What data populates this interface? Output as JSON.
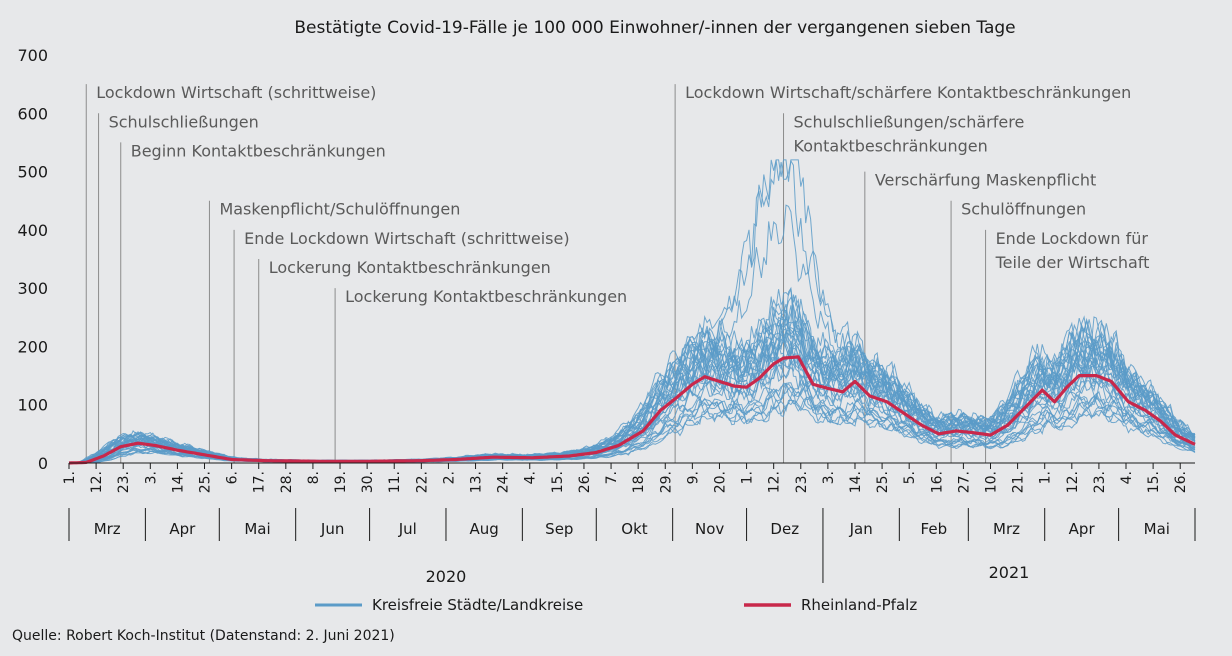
{
  "chart_data": {
    "type": "line",
    "title": "Bestätigte Covid-19-Fälle je 100 000 Einwohner/-innen der vergangenen sieben Tage",
    "ylim": [
      0,
      700
    ],
    "yticks": [
      0,
      100,
      200,
      300,
      400,
      500,
      600,
      700
    ],
    "x_domain": [
      "2020-03-01",
      "2021-06-01"
    ],
    "x_ticks": [
      {
        "date": "2020-03-01",
        "label": "1."
      },
      {
        "date": "2020-03-12",
        "label": "12."
      },
      {
        "date": "2020-03-23",
        "label": "23."
      },
      {
        "date": "2020-04-03",
        "label": "3."
      },
      {
        "date": "2020-04-14",
        "label": "14."
      },
      {
        "date": "2020-04-25",
        "label": "25."
      },
      {
        "date": "2020-05-06",
        "label": "6."
      },
      {
        "date": "2020-05-17",
        "label": "17."
      },
      {
        "date": "2020-05-28",
        "label": "28."
      },
      {
        "date": "2020-06-08",
        "label": "8."
      },
      {
        "date": "2020-06-19",
        "label": "19."
      },
      {
        "date": "2020-06-30",
        "label": "30."
      },
      {
        "date": "2020-07-11",
        "label": "11."
      },
      {
        "date": "2020-07-22",
        "label": "22."
      },
      {
        "date": "2020-08-02",
        "label": "2."
      },
      {
        "date": "2020-08-13",
        "label": "13."
      },
      {
        "date": "2020-08-24",
        "label": "24."
      },
      {
        "date": "2020-09-04",
        "label": "4."
      },
      {
        "date": "2020-09-15",
        "label": "15."
      },
      {
        "date": "2020-09-26",
        "label": "26."
      },
      {
        "date": "2020-10-07",
        "label": "7."
      },
      {
        "date": "2020-10-18",
        "label": "18."
      },
      {
        "date": "2020-10-29",
        "label": "29."
      },
      {
        "date": "2020-11-09",
        "label": "9."
      },
      {
        "date": "2020-11-20",
        "label": "20."
      },
      {
        "date": "2020-12-01",
        "label": "1."
      },
      {
        "date": "2020-12-12",
        "label": "12."
      },
      {
        "date": "2020-12-23",
        "label": "23."
      },
      {
        "date": "2021-01-03",
        "label": "3."
      },
      {
        "date": "2021-01-14",
        "label": "14."
      },
      {
        "date": "2021-01-25",
        "label": "25."
      },
      {
        "date": "2021-02-05",
        "label": "5."
      },
      {
        "date": "2021-02-16",
        "label": "16."
      },
      {
        "date": "2021-02-27",
        "label": "27."
      },
      {
        "date": "2021-03-10",
        "label": "10."
      },
      {
        "date": "2021-03-21",
        "label": "21."
      },
      {
        "date": "2021-04-01",
        "label": "1."
      },
      {
        "date": "2021-04-12",
        "label": "12."
      },
      {
        "date": "2021-04-23",
        "label": "23."
      },
      {
        "date": "2021-05-04",
        "label": "4."
      },
      {
        "date": "2021-05-15",
        "label": "15."
      },
      {
        "date": "2021-05-26",
        "label": "26."
      }
    ],
    "months": [
      {
        "label": "Mrz",
        "start": "2020-03-01",
        "end": "2020-04-01"
      },
      {
        "label": "Apr",
        "start": "2020-04-01",
        "end": "2020-05-01"
      },
      {
        "label": "Mai",
        "start": "2020-05-01",
        "end": "2020-06-01"
      },
      {
        "label": "Jun",
        "start": "2020-06-01",
        "end": "2020-07-01"
      },
      {
        "label": "Jul",
        "start": "2020-07-01",
        "end": "2020-08-01"
      },
      {
        "label": "Aug",
        "start": "2020-08-01",
        "end": "2020-09-01"
      },
      {
        "label": "Sep",
        "start": "2020-09-01",
        "end": "2020-10-01"
      },
      {
        "label": "Okt",
        "start": "2020-10-01",
        "end": "2020-11-01"
      },
      {
        "label": "Nov",
        "start": "2020-11-01",
        "end": "2020-12-01"
      },
      {
        "label": "Dez",
        "start": "2020-12-01",
        "end": "2021-01-01"
      },
      {
        "label": "Jan",
        "start": "2021-01-01",
        "end": "2021-02-01"
      },
      {
        "label": "Feb",
        "start": "2021-02-01",
        "end": "2021-03-01"
      },
      {
        "label": "Mrz",
        "start": "2021-03-01",
        "end": "2021-04-01"
      },
      {
        "label": "Apr",
        "start": "2021-04-01",
        "end": "2021-05-01"
      },
      {
        "label": "Mai",
        "start": "2021-05-01",
        "end": "2021-06-01"
      }
    ],
    "years": [
      {
        "label": "2020",
        "start": "2020-03-01",
        "end": "2021-01-01"
      },
      {
        "label": "2021",
        "start": "2021-01-01",
        "end": "2021-06-01"
      }
    ],
    "legend": [
      {
        "label": "Kreisfreie Städte/Landkreise",
        "color": "#5b9bc8"
      },
      {
        "label": "Rheinland-Pfalz",
        "color": "#c8284b"
      }
    ],
    "annotations": [
      {
        "date": "2020-03-08",
        "top": 650,
        "lines": [
          "Lockdown Wirtschaft (schrittweise)"
        ]
      },
      {
        "date": "2020-03-13",
        "top": 600,
        "lines": [
          "Schulschließungen"
        ]
      },
      {
        "date": "2020-03-22",
        "top": 550,
        "lines": [
          "Beginn Kontaktbeschränkungen"
        ]
      },
      {
        "date": "2020-04-27",
        "top": 450,
        "lines": [
          "Maskenpflicht/Schulöffnungen"
        ]
      },
      {
        "date": "2020-05-07",
        "top": 400,
        "lines": [
          "Ende Lockdown Wirtschaft (schrittweise)"
        ]
      },
      {
        "date": "2020-05-17",
        "top": 350,
        "lines": [
          "Lockerung Kontaktbeschränkungen"
        ]
      },
      {
        "date": "2020-06-17",
        "top": 300,
        "lines": [
          "Lockerung Kontaktbeschränkungen"
        ]
      },
      {
        "date": "2020-11-02",
        "top": 650,
        "lines": [
          "Lockdown Wirtschaft/schärfere Kontaktbeschränkungen"
        ]
      },
      {
        "date": "2020-12-16",
        "top": 600,
        "lines": [
          "Schulschließungen/schärfere",
          "Kontaktbeschränkungen"
        ]
      },
      {
        "date": "2021-01-18",
        "top": 500,
        "lines": [
          "Verschärfung Maskenpflicht"
        ]
      },
      {
        "date": "2021-02-22",
        "top": 450,
        "lines": [
          "Schulöffnungen"
        ]
      },
      {
        "date": "2021-03-08",
        "top": 400,
        "lines": [
          "Ende Lockdown für",
          "Teile der Wirtschaft"
        ]
      }
    ],
    "rlp_series": {
      "name": "Rheinland-Pfalz",
      "points": [
        [
          "2020-03-01",
          0
        ],
        [
          "2020-03-08",
          1
        ],
        [
          "2020-03-15",
          12
        ],
        [
          "2020-03-22",
          28
        ],
        [
          "2020-03-29",
          34
        ],
        [
          "2020-04-05",
          30
        ],
        [
          "2020-04-14",
          22
        ],
        [
          "2020-04-25",
          14
        ],
        [
          "2020-05-06",
          6
        ],
        [
          "2020-05-20",
          4
        ],
        [
          "2020-06-10",
          3
        ],
        [
          "2020-07-01",
          3
        ],
        [
          "2020-07-22",
          4
        ],
        [
          "2020-08-05",
          6
        ],
        [
          "2020-08-20",
          10
        ],
        [
          "2020-09-05",
          9
        ],
        [
          "2020-09-20",
          12
        ],
        [
          "2020-10-01",
          18
        ],
        [
          "2020-10-10",
          30
        ],
        [
          "2020-10-20",
          55
        ],
        [
          "2020-10-27",
          90
        ],
        [
          "2020-11-02",
          110
        ],
        [
          "2020-11-09",
          135
        ],
        [
          "2020-11-14",
          148
        ],
        [
          "2020-11-20",
          140
        ],
        [
          "2020-11-26",
          132
        ],
        [
          "2020-12-01",
          130
        ],
        [
          "2020-12-06",
          145
        ],
        [
          "2020-12-12",
          170
        ],
        [
          "2020-12-16",
          180
        ],
        [
          "2020-12-22",
          182
        ],
        [
          "2020-12-28",
          135
        ],
        [
          "2021-01-03",
          128
        ],
        [
          "2021-01-09",
          122
        ],
        [
          "2021-01-14",
          140
        ],
        [
          "2021-01-20",
          115
        ],
        [
          "2021-01-27",
          105
        ],
        [
          "2021-02-03",
          85
        ],
        [
          "2021-02-10",
          65
        ],
        [
          "2021-02-17",
          50
        ],
        [
          "2021-02-24",
          55
        ],
        [
          "2021-03-03",
          52
        ],
        [
          "2021-03-10",
          48
        ],
        [
          "2021-03-17",
          65
        ],
        [
          "2021-03-24",
          95
        ],
        [
          "2021-03-31",
          125
        ],
        [
          "2021-04-05",
          105
        ],
        [
          "2021-04-10",
          130
        ],
        [
          "2021-04-15",
          150
        ],
        [
          "2021-04-22",
          150
        ],
        [
          "2021-04-28",
          140
        ],
        [
          "2021-05-05",
          105
        ],
        [
          "2021-05-12",
          90
        ],
        [
          "2021-05-18",
          72
        ],
        [
          "2021-05-24",
          48
        ],
        [
          "2021-06-01",
          32
        ]
      ]
    },
    "district_series": {
      "name": "Kreisfreie Städte/Landkreise",
      "count": 36,
      "max_value": 520,
      "note": "36 thin lines spread around the state curve; individual values not labeled"
    }
  },
  "legend": {
    "districts_label": "Kreisfreie Städte/Landkreise",
    "state_label": "Rheinland-Pfalz"
  },
  "source": "Quelle: Robert Koch-Institut (Datenstand: 2. Juni 2021)",
  "colors": {
    "districts": "#5b9bc8",
    "state": "#c8284b",
    "background": "#e7e8ea"
  }
}
